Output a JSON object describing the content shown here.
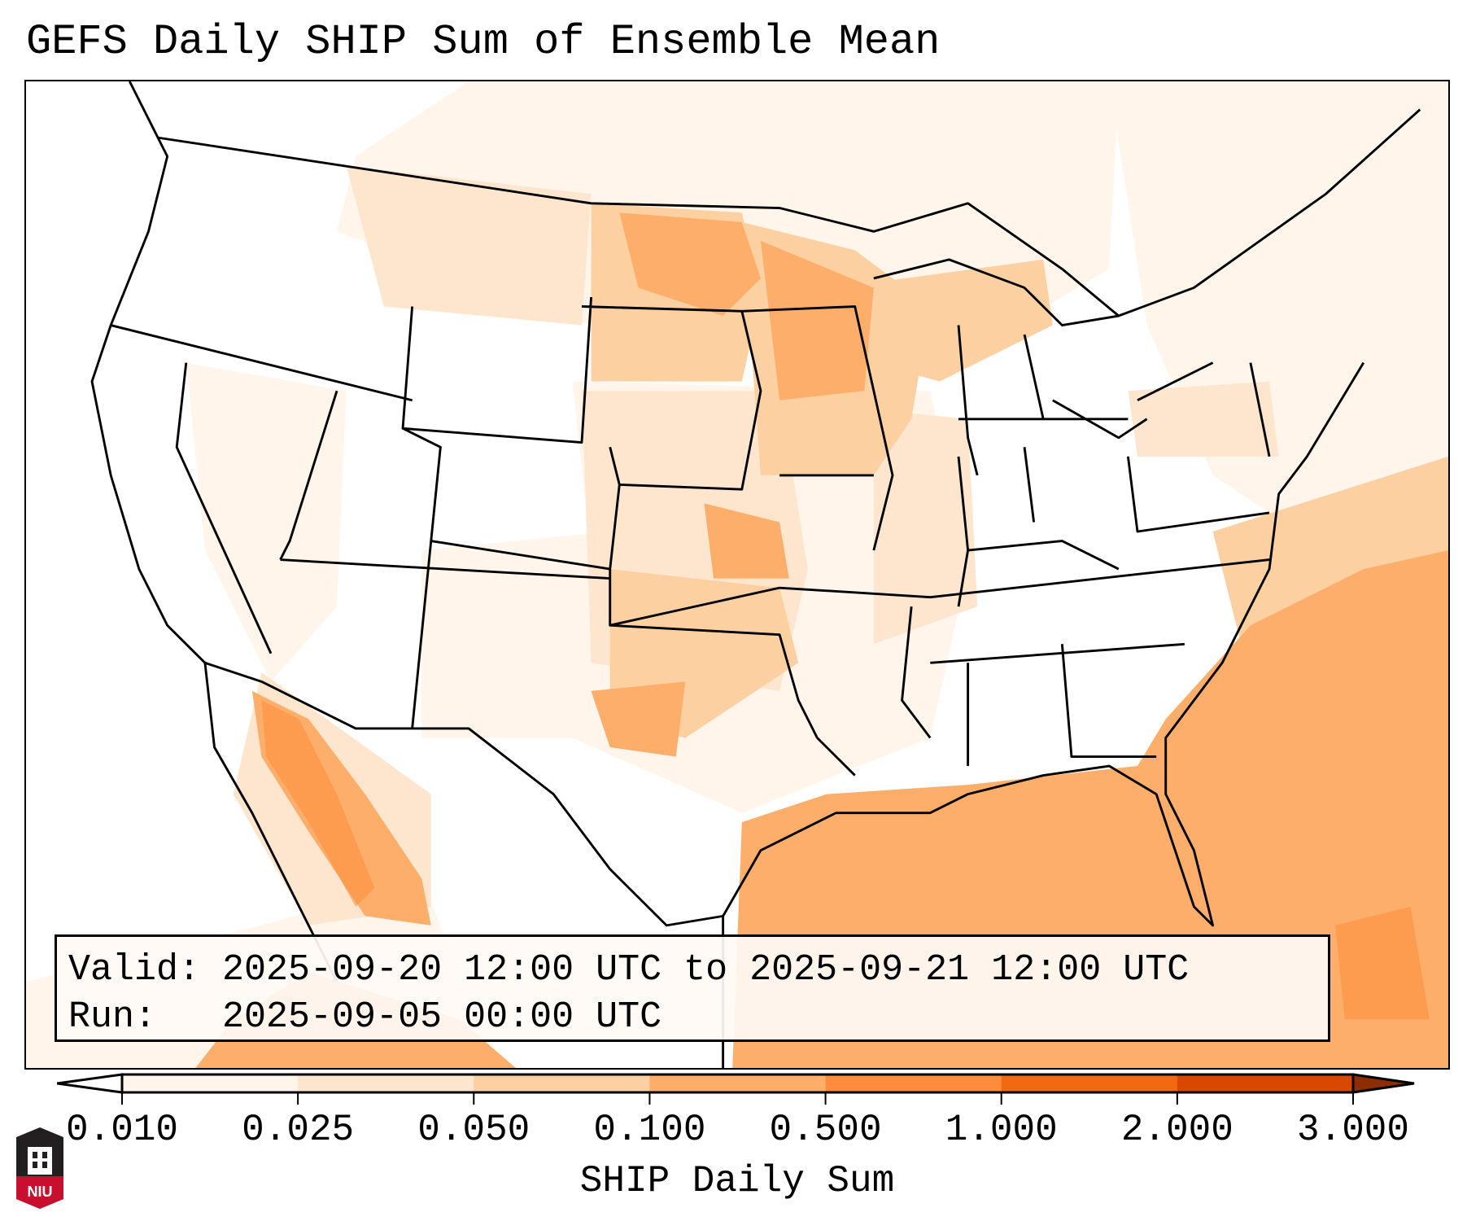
{
  "title": "GEFS Daily SHIP Sum of Ensemble Mean",
  "info": {
    "valid": "Valid: 2025-09-20 12:00 UTC to 2025-09-21 12:00 UTC",
    "run": "Run:   2025-09-05 00:00 UTC"
  },
  "logo_text": "NIU",
  "chart_data": {
    "type": "heatmap",
    "title": "GEFS Daily SHIP Sum of Ensemble Mean",
    "colorbar": {
      "label": "SHIP Daily Sum",
      "ticks": [
        "0.010",
        "0.025",
        "0.050",
        "0.100",
        "0.500",
        "1.000",
        "2.000",
        "3.000"
      ],
      "colors": [
        "#fff5eb",
        "#fee6ce",
        "#fdd0a2",
        "#fdae6b",
        "#fd8d3c",
        "#f16913",
        "#d94801"
      ],
      "under_color": "#ffffff",
      "over_color": "#8c2d04",
      "extend": "both"
    },
    "regions": [
      {
        "name": "Gulf of Mexico / western Atlantic",
        "range": "0.100-0.500"
      },
      {
        "name": "Northern & Central Plains / Upper Midwest",
        "range": "0.050-0.500"
      },
      {
        "name": "Gulf of California / NW Mexico",
        "range": "0.100-0.500"
      },
      {
        "name": "Southern Plains / Texas",
        "range": "0.025-0.100"
      },
      {
        "name": "Great Basin / Pacific Northwest",
        "range": "<0.010"
      }
    ]
  }
}
